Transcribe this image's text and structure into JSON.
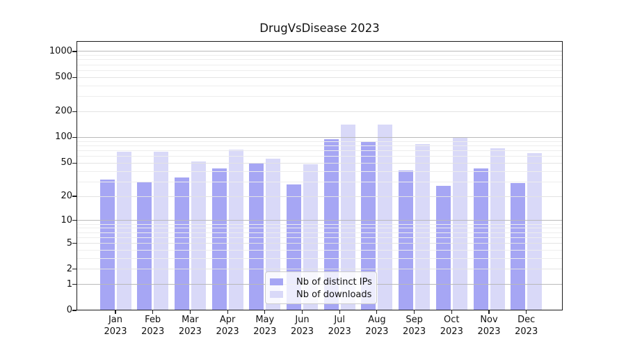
{
  "figure": {
    "title": "DrugVsDisease 2023"
  },
  "chart_data": {
    "type": "bar",
    "title": "DrugVsDisease 2023",
    "x_year": "2023",
    "months": [
      "Jan",
      "Feb",
      "Mar",
      "Apr",
      "May",
      "Jun",
      "Jul",
      "Aug",
      "Sep",
      "Oct",
      "Nov",
      "Dec"
    ],
    "categories": [
      "Jan 2023",
      "Feb 2023",
      "Mar 2023",
      "Apr 2023",
      "May 2023",
      "Jun 2023",
      "Jul 2023",
      "Aug 2023",
      "Sep 2023",
      "Oct 2023",
      "Nov 2023",
      "Dec 2023"
    ],
    "series": [
      {
        "name": "Nb of distinct IPs",
        "color": "#a6a6f4",
        "values": [
          32,
          30,
          34,
          43,
          50,
          28,
          95,
          90,
          41,
          27,
          43,
          29
        ]
      },
      {
        "name": "Nb of downloads",
        "color": "#d9d9f8",
        "values": [
          68,
          68,
          52,
          72,
          56,
          48,
          140,
          140,
          84,
          100,
          75,
          66
        ]
      }
    ],
    "yscale": "log1p",
    "ylim": [
      0,
      1320
    ],
    "y_ticks": [
      0,
      1,
      2,
      5,
      10,
      20,
      50,
      100,
      200,
      500,
      1000
    ],
    "gridlines": {
      "major": [
        1,
        10,
        100,
        1000
      ],
      "mid": [
        2,
        5,
        20,
        50,
        200,
        500
      ],
      "minor": [
        3,
        4,
        6,
        7,
        8,
        9,
        30,
        40,
        60,
        70,
        80,
        90,
        300,
        400,
        600,
        700,
        800,
        900
      ]
    },
    "legend": {
      "position": "lower center",
      "entries": [
        "Nb of distinct IPs",
        "Nb of downloads"
      ]
    },
    "xlabel": "",
    "ylabel": ""
  }
}
